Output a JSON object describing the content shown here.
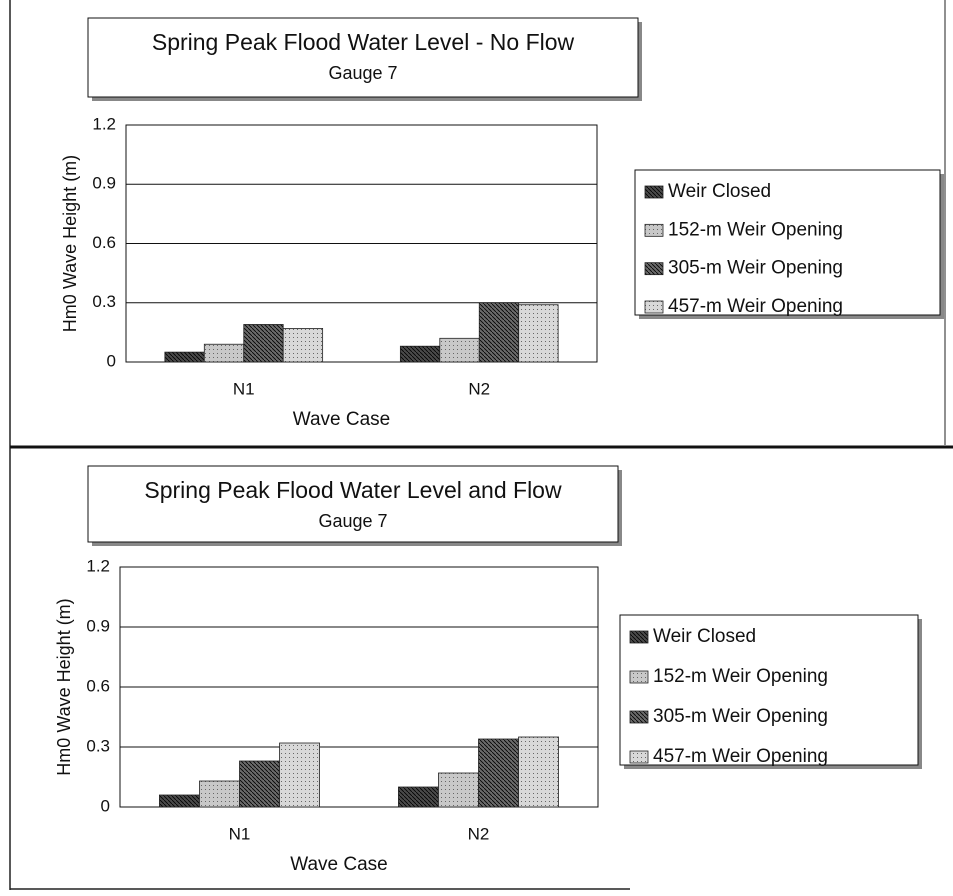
{
  "chart_data": [
    {
      "type": "bar",
      "title": "Spring Peak Flood Water Level - No Flow",
      "subtitle": "Gauge 7",
      "xlabel": "Wave Case",
      "ylabel": "Hm0 Wave Height (m)",
      "categories": [
        "N1",
        "N2"
      ],
      "series": [
        {
          "name": "Weir Closed",
          "color": "#4a4a4a",
          "values": [
            0.05,
            0.08
          ]
        },
        {
          "name": "152-m Weir Opening",
          "color": "#c8c8c8",
          "values": [
            0.09,
            0.12
          ]
        },
        {
          "name": "305-m Weir Opening",
          "color": "#6a6a6a",
          "values": [
            0.19,
            0.3
          ]
        },
        {
          "name": "457-m Weir Opening",
          "color": "#d8d8d8",
          "values": [
            0.17,
            0.29
          ]
        }
      ],
      "ylim": [
        0,
        1.2
      ],
      "yticks": [
        0,
        0.3,
        0.6,
        0.9,
        1.2
      ],
      "grid": true
    },
    {
      "type": "bar",
      "title": "Spring Peak Flood Water Level and Flow",
      "subtitle": "Gauge 7",
      "xlabel": "Wave Case",
      "ylabel": "Hm0 Wave Height (m)",
      "categories": [
        "N1",
        "N2"
      ],
      "series": [
        {
          "name": "Weir Closed",
          "color": "#4a4a4a",
          "values": [
            0.06,
            0.1
          ]
        },
        {
          "name": "152-m Weir Opening",
          "color": "#c8c8c8",
          "values": [
            0.13,
            0.17
          ]
        },
        {
          "name": "305-m Weir Opening",
          "color": "#6a6a6a",
          "values": [
            0.23,
            0.34
          ]
        },
        {
          "name": "457-m Weir Opening",
          "color": "#d8d8d8",
          "values": [
            0.32,
            0.35
          ]
        }
      ],
      "ylim": [
        0,
        1.2
      ],
      "yticks": [
        0,
        0.3,
        0.6,
        0.9,
        1.2
      ],
      "grid": true
    }
  ]
}
